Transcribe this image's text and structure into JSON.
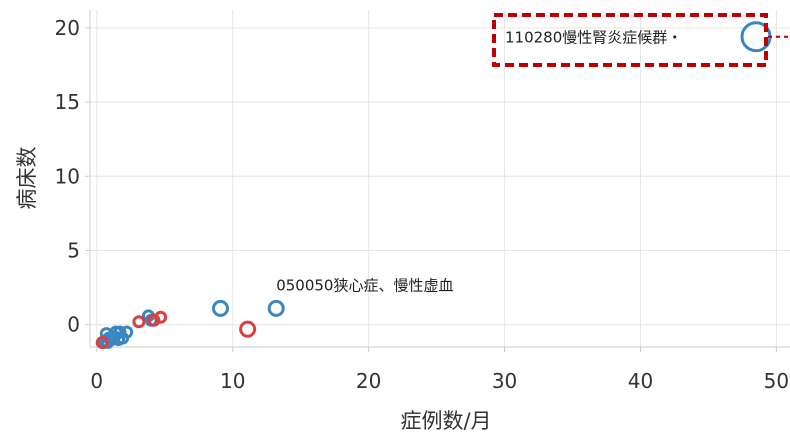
{
  "chart_data": {
    "type": "scatter",
    "title": "",
    "xlabel": "症例数/月",
    "ylabel": "病床数",
    "xlim": [
      -0.5,
      51
    ],
    "ylim": [
      -1.5,
      21.2
    ],
    "x_ticks": [
      0,
      10,
      20,
      30,
      40,
      50
    ],
    "y_ticks": [
      0,
      5,
      10,
      15,
      20
    ],
    "grid": true,
    "colors": {
      "blue": "#3a86c0",
      "red": "#d94040",
      "highlight_border": "#c00000"
    },
    "series": [
      {
        "color": "blue",
        "points": [
          {
            "x": 48.5,
            "y": 19.4
          },
          {
            "x": 13.2,
            "y": 1.1
          },
          {
            "x": 9.1,
            "y": 1.1
          },
          {
            "x": 3.8,
            "y": 0.6
          },
          {
            "x": 4.0,
            "y": 0.3
          },
          {
            "x": 2.2,
            "y": -0.5
          },
          {
            "x": 1.7,
            "y": -0.5
          },
          {
            "x": 1.4,
            "y": -0.5
          },
          {
            "x": 1.3,
            "y": -0.8
          },
          {
            "x": 1.9,
            "y": -0.9
          },
          {
            "x": 1.1,
            "y": -1.0
          },
          {
            "x": 0.9,
            "y": -0.9
          },
          {
            "x": 0.7,
            "y": -0.6
          },
          {
            "x": 0.6,
            "y": -1.1
          },
          {
            "x": 0.5,
            "y": -1.2
          },
          {
            "x": 1.6,
            "y": -1.0
          },
          {
            "x": 0.8,
            "y": -1.2
          }
        ]
      },
      {
        "color": "red",
        "points": [
          {
            "x": 11.1,
            "y": -0.3
          },
          {
            "x": 4.7,
            "y": 0.5
          },
          {
            "x": 4.2,
            "y": 0.3
          },
          {
            "x": 3.1,
            "y": 0.2
          },
          {
            "x": 0.4,
            "y": -1.2
          }
        ]
      }
    ],
    "annotations": [
      {
        "text": "110280慢性腎炎症候群・",
        "x": 48.5,
        "y": 19.4,
        "highlighted": true
      },
      {
        "text": "050050狭心症、慢性虚血",
        "x": 13.2,
        "y": 1.1,
        "highlighted": false
      }
    ]
  }
}
